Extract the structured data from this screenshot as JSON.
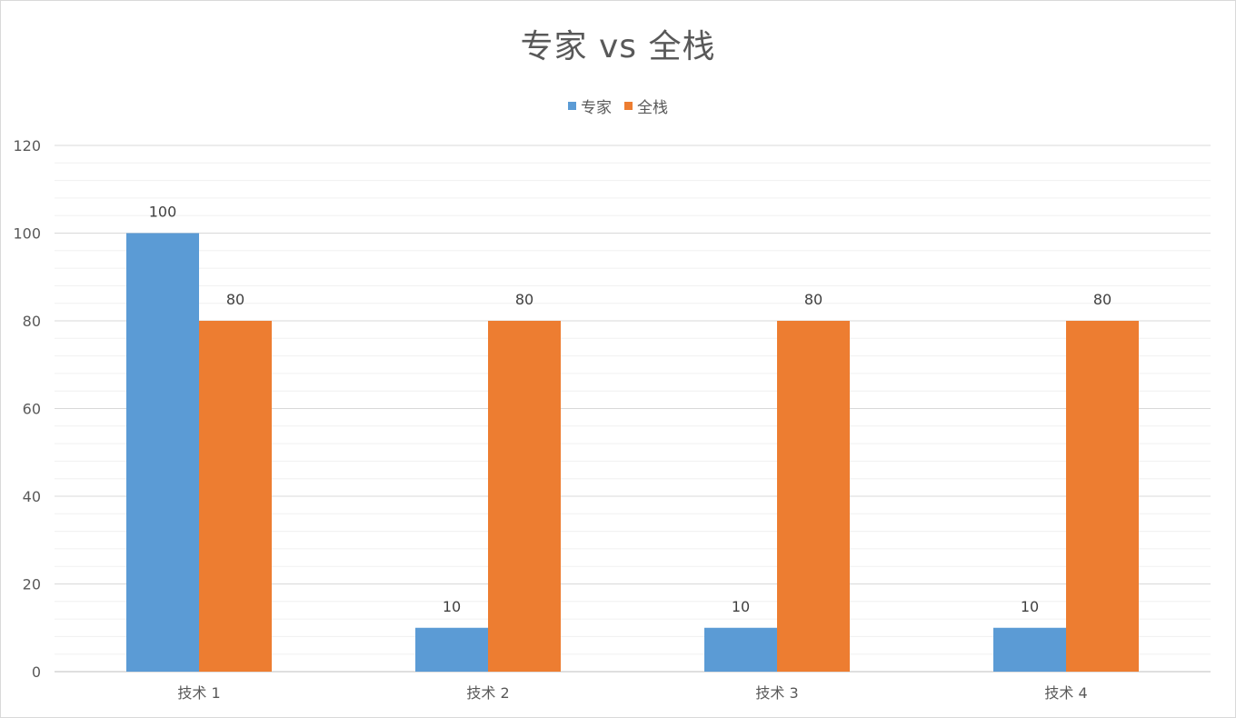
{
  "chart_data": {
    "type": "bar",
    "title": "专家 vs 全栈",
    "xlabel": "",
    "ylabel": "",
    "categories": [
      "技术 1",
      "技术 2",
      "技术 3",
      "技术 4"
    ],
    "series": [
      {
        "name": "专家",
        "values": [
          100,
          10,
          10,
          10
        ],
        "color": "#5b9bd5"
      },
      {
        "name": "全栈",
        "values": [
          80,
          80,
          80,
          80
        ],
        "color": "#ed7d31"
      }
    ],
    "ylim": [
      0,
      120
    ],
    "yticks": [
      0,
      20,
      40,
      60,
      80,
      100,
      120
    ],
    "grid": true,
    "legend_position": "top",
    "data_labels": true
  }
}
